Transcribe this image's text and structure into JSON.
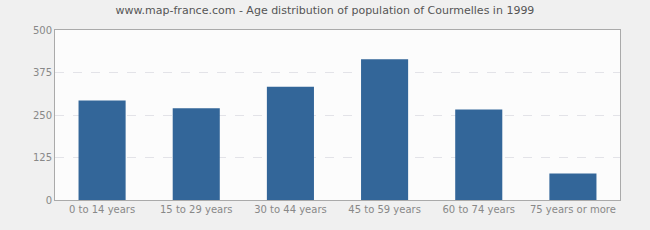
{
  "chart_data": {
    "type": "bar",
    "title": "www.map-france.com - Age distribution of population of Courmelles in 1999",
    "categories": [
      "0 to 14 years",
      "15 to 29 years",
      "30 to 44 years",
      "45 to 59 years",
      "60 to 74 years",
      "75 years or more"
    ],
    "values": [
      293,
      270,
      333,
      414,
      266,
      78
    ],
    "color": "#336699",
    "ylim": [
      0,
      500
    ],
    "yticks": [
      0,
      125,
      250,
      375,
      500
    ],
    "grid": true
  }
}
